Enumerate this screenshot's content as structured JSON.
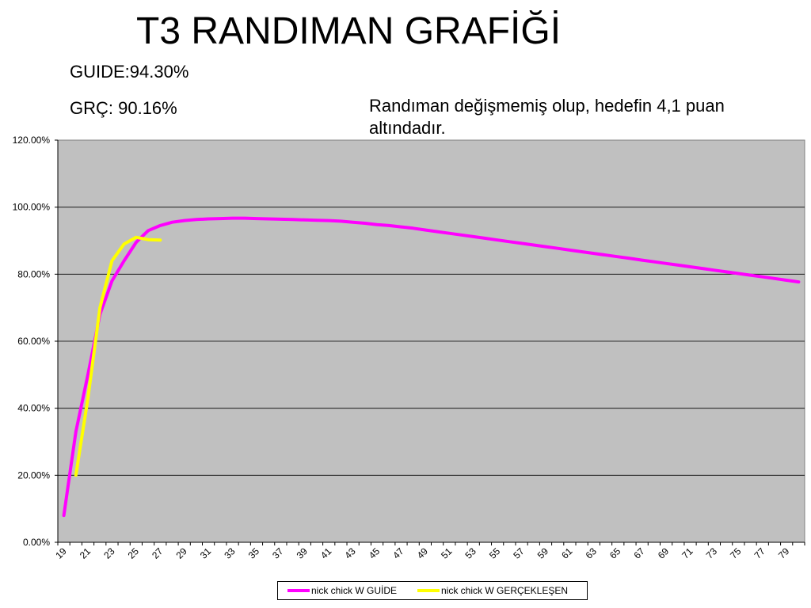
{
  "header": {
    "title": "T3 RANDIMAN GRAFİĞİ",
    "guide_stat": "GUIDE:94.30%",
    "grc_stat": "GRÇ: 90.16%",
    "note": "Randıman değişmemiş olup,  hedefin 4,1 puan altındadır."
  },
  "chart_data": {
    "type": "line",
    "title": "",
    "xlabel": "",
    "ylabel": "",
    "x_start": 19,
    "x_end": 80,
    "x_tick_labels": [
      "19",
      "21",
      "23",
      "25",
      "27",
      "29",
      "31",
      "33",
      "35",
      "37",
      "39",
      "41",
      "43",
      "45",
      "47",
      "49",
      "51",
      "53",
      "55",
      "57",
      "59",
      "61",
      "63",
      "65",
      "67",
      "69",
      "71",
      "73",
      "75",
      "77",
      "79"
    ],
    "y_tick_labels": [
      "0.00%",
      "20.00%",
      "40.00%",
      "60.00%",
      "80.00%",
      "100.00%",
      "120.00%"
    ],
    "ylim": [
      0,
      120
    ],
    "grid": "horizontal",
    "plot_background": "#c0c0c0",
    "legend_position": "bottom",
    "series": [
      {
        "name": "nick chick W GUİDE",
        "color": "#ff00ff",
        "x": [
          19,
          20,
          21,
          22,
          23,
          24,
          25,
          26,
          27,
          28,
          29,
          30,
          31,
          32,
          33,
          34,
          35,
          36,
          37,
          38,
          39,
          40,
          41,
          42,
          43,
          44,
          45,
          46,
          47,
          48,
          49,
          50,
          51,
          52,
          53,
          54,
          55,
          56,
          57,
          58,
          59,
          60,
          61,
          62,
          63,
          64,
          65,
          66,
          67,
          68,
          69,
          70,
          71,
          72,
          73,
          74,
          75,
          76,
          77,
          78,
          79,
          80
        ],
        "values": [
          8.0,
          33.0,
          50.0,
          68.0,
          78.0,
          84.0,
          89.5,
          93.0,
          94.5,
          95.5,
          96.0,
          96.3,
          96.5,
          96.6,
          96.7,
          96.7,
          96.6,
          96.5,
          96.4,
          96.3,
          96.2,
          96.1,
          96.0,
          95.8,
          95.5,
          95.2,
          94.8,
          94.5,
          94.1,
          93.7,
          93.2,
          92.7,
          92.2,
          91.7,
          91.2,
          90.7,
          90.2,
          89.7,
          89.2,
          88.7,
          88.2,
          87.7,
          87.2,
          86.7,
          86.2,
          85.7,
          85.2,
          84.7,
          84.2,
          83.7,
          83.2,
          82.7,
          82.2,
          81.7,
          81.2,
          80.7,
          80.2,
          79.7,
          79.2,
          78.7,
          78.2,
          77.7
        ]
      },
      {
        "name": "nick chick W GERÇEKLEŞEN",
        "color": "#ffff00",
        "x": [
          20,
          21,
          22,
          23,
          24,
          25,
          26,
          27
        ],
        "values": [
          20.0,
          43.0,
          70.0,
          84.0,
          89.0,
          91.0,
          90.3,
          90.16
        ]
      }
    ]
  }
}
